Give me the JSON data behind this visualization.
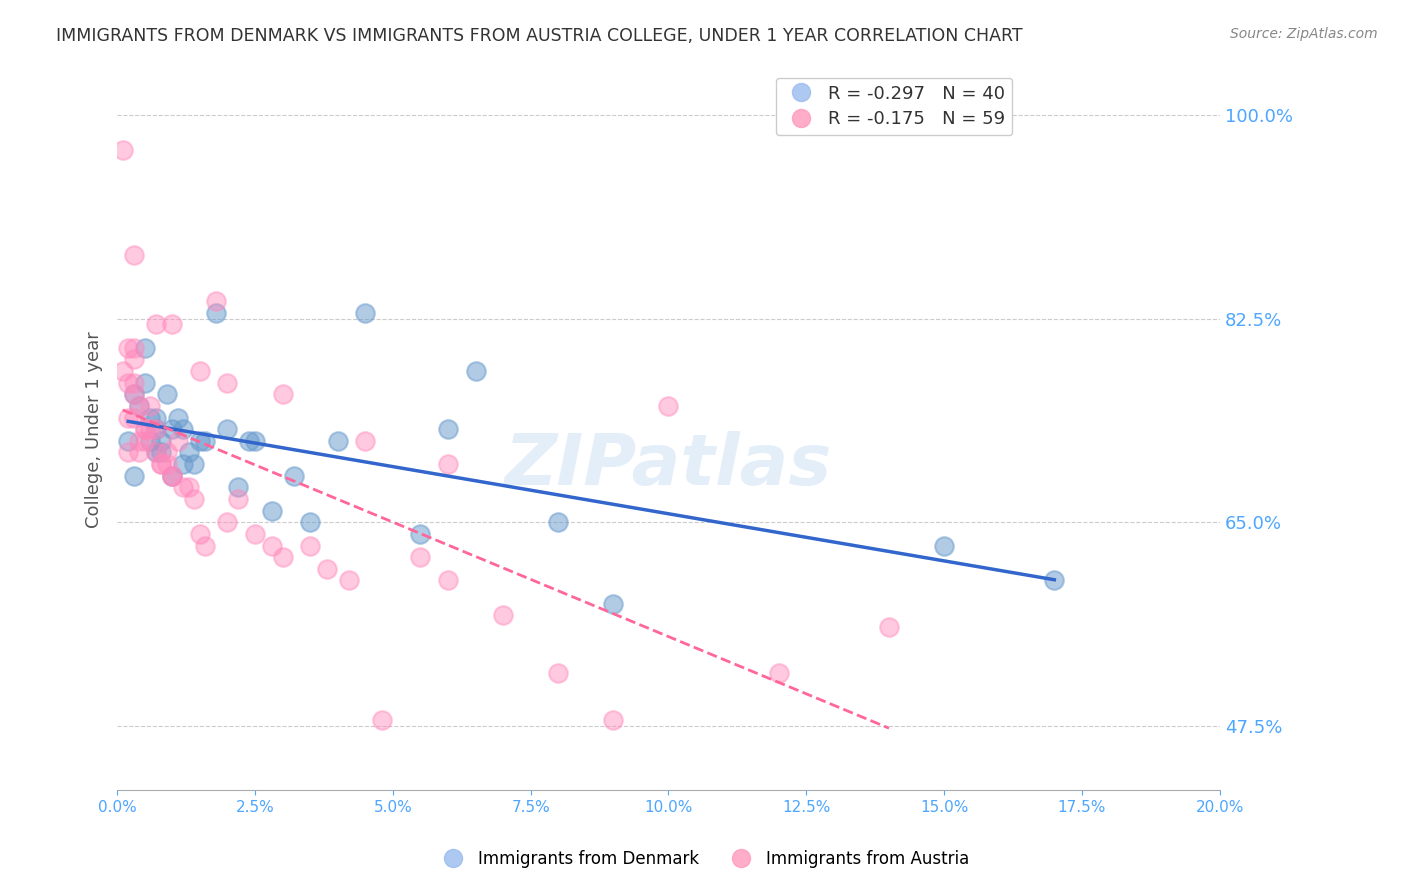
{
  "title": "IMMIGRANTS FROM DENMARK VS IMMIGRANTS FROM AUSTRIA COLLEGE, UNDER 1 YEAR CORRELATION CHART",
  "source": "Source: ZipAtlas.com",
  "xlabel": "",
  "ylabel": "College, Under 1 year",
  "xlim": [
    0.0,
    0.2
  ],
  "ylim": [
    0.4,
    1.04
  ],
  "yticks": [
    0.475,
    0.5,
    0.525,
    0.55,
    0.575,
    0.6,
    0.625,
    0.65,
    0.675,
    0.7,
    0.725,
    0.75,
    0.775,
    0.8,
    0.825,
    0.85,
    0.875,
    0.9,
    0.925,
    0.95,
    0.975,
    1.0
  ],
  "ytick_labels_right": [
    "47.5%",
    "82.5%",
    "65.0%",
    "100.0%"
  ],
  "ytick_positions_right": [
    0.475,
    0.825,
    0.65,
    1.0
  ],
  "xticks": [
    0.0,
    0.025,
    0.05,
    0.075,
    0.1,
    0.125,
    0.15,
    0.175,
    0.2
  ],
  "xtick_labels": [
    "0.0%",
    "2.5%",
    "5.0%",
    "7.5%",
    "10.0%",
    "12.5%",
    "15.0%",
    "17.5%",
    "20.0%"
  ],
  "legend_entries": [
    {
      "label": "R = -0.297   N = 40",
      "color": "#6699cc"
    },
    {
      "label": "R = -0.175   N = 59",
      "color": "#ff6699"
    }
  ],
  "denmark_color": "#6699cc",
  "austria_color": "#ff88bb",
  "trend_denmark_color": "#3366cc",
  "trend_austria_color": "#ff6699",
  "watermark": "ZIPatlas",
  "denmark_x": [
    0.002,
    0.003,
    0.003,
    0.004,
    0.005,
    0.005,
    0.006,
    0.006,
    0.007,
    0.007,
    0.007,
    0.008,
    0.008,
    0.009,
    0.01,
    0.01,
    0.011,
    0.012,
    0.012,
    0.013,
    0.014,
    0.015,
    0.016,
    0.018,
    0.02,
    0.022,
    0.024,
    0.025,
    0.028,
    0.032,
    0.035,
    0.04,
    0.045,
    0.055,
    0.06,
    0.065,
    0.08,
    0.09,
    0.15,
    0.17
  ],
  "denmark_y": [
    0.72,
    0.76,
    0.69,
    0.75,
    0.8,
    0.77,
    0.72,
    0.74,
    0.73,
    0.74,
    0.71,
    0.72,
    0.71,
    0.76,
    0.69,
    0.73,
    0.74,
    0.73,
    0.7,
    0.71,
    0.7,
    0.72,
    0.72,
    0.83,
    0.73,
    0.68,
    0.72,
    0.72,
    0.66,
    0.69,
    0.65,
    0.72,
    0.83,
    0.64,
    0.73,
    0.78,
    0.65,
    0.58,
    0.63,
    0.6
  ],
  "austria_x": [
    0.001,
    0.001,
    0.002,
    0.002,
    0.002,
    0.002,
    0.003,
    0.003,
    0.003,
    0.003,
    0.003,
    0.004,
    0.004,
    0.004,
    0.005,
    0.005,
    0.005,
    0.006,
    0.006,
    0.007,
    0.007,
    0.008,
    0.008,
    0.009,
    0.009,
    0.01,
    0.01,
    0.011,
    0.012,
    0.013,
    0.014,
    0.015,
    0.016,
    0.018,
    0.02,
    0.022,
    0.025,
    0.028,
    0.03,
    0.035,
    0.038,
    0.042,
    0.048,
    0.055,
    0.06,
    0.07,
    0.08,
    0.09,
    0.12,
    0.14,
    0.003,
    0.007,
    0.01,
    0.015,
    0.02,
    0.03,
    0.045,
    0.06,
    0.1
  ],
  "austria_y": [
    0.97,
    0.78,
    0.8,
    0.77,
    0.74,
    0.71,
    0.8,
    0.79,
    0.77,
    0.76,
    0.74,
    0.75,
    0.72,
    0.71,
    0.73,
    0.73,
    0.72,
    0.75,
    0.73,
    0.73,
    0.71,
    0.7,
    0.7,
    0.71,
    0.7,
    0.69,
    0.69,
    0.72,
    0.68,
    0.68,
    0.67,
    0.64,
    0.63,
    0.84,
    0.65,
    0.67,
    0.64,
    0.63,
    0.62,
    0.63,
    0.61,
    0.6,
    0.48,
    0.62,
    0.6,
    0.57,
    0.52,
    0.48,
    0.52,
    0.56,
    0.88,
    0.82,
    0.82,
    0.78,
    0.77,
    0.76,
    0.72,
    0.7,
    0.75
  ],
  "background_color": "#ffffff",
  "grid_color": "#cccccc",
  "title_color": "#333333",
  "axis_label_color": "#555555",
  "right_tick_color": "#4da6ff",
  "bottom_tick_color": "#4da6ff"
}
